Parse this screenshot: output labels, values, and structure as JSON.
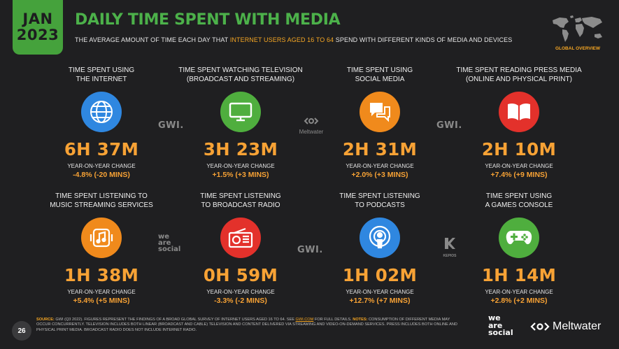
{
  "badge": {
    "month": "JAN",
    "year": "2023"
  },
  "title": "DAILY TIME SPENT WITH MEDIA",
  "subtitle": {
    "pre": "THE AVERAGE AMOUNT OF TIME EACH DAY THAT ",
    "highlight": "INTERNET USERS AGED 16 TO 64",
    "post": " SPEND WITH DIFFERENT KINDS OF MEDIA AND DEVICES"
  },
  "map_label": "GLOBAL OVERVIEW",
  "yoy_label": "YEAR-ON-YEAR CHANGE",
  "cards": [
    {
      "line1": "TIME SPENT USING",
      "line2": "THE INTERNET",
      "value": "6H 37M",
      "change": "-4.8% (-20 MINS)",
      "icon": "globe-icon",
      "color": "#2f87e0"
    },
    {
      "line1": "TIME SPENT WATCHING TELEVISION",
      "line2": "(BROADCAST AND STREAMING)",
      "value": "3H 23M",
      "change": "+1.5% (+3 MINS)",
      "icon": "television-icon",
      "color": "#4fae3e"
    },
    {
      "line1": "TIME SPENT USING",
      "line2": "SOCIAL MEDIA",
      "value": "2H 31M",
      "change": "+2.0% (+3 MINS)",
      "icon": "chat-bubbles-icon",
      "color": "#f08a1c"
    },
    {
      "line1": "TIME SPENT READING PRESS MEDIA",
      "line2": "(ONLINE AND PHYSICAL PRINT)",
      "value": "2H 10M",
      "change": "+7.4% (+9 MINS)",
      "icon": "book-icon",
      "color": "#e3312b"
    },
    {
      "line1": "TIME SPENT LISTENING TO",
      "line2": "MUSIC STREAMING SERVICES",
      "value": "1H 38M",
      "change": "+5.4% (+5 MINS)",
      "icon": "music-icon",
      "color": "#f08a1c"
    },
    {
      "line1": "TIME SPENT LISTENING",
      "line2": "TO BROADCAST RADIO",
      "value": "0H 59M",
      "change": "-3.3% (-2 MINS)",
      "icon": "radio-icon",
      "color": "#e3312b"
    },
    {
      "line1": "TIME SPENT LISTENING",
      "line2": "TO PODCASTS",
      "value": "1H 02M",
      "change": "+12.7% (+7 MINS)",
      "icon": "podcast-icon",
      "color": "#2f87e0"
    },
    {
      "line1": "TIME SPENT USING",
      "line2": "A GAMES CONSOLE",
      "value": "1H 14M",
      "change": "+2.8% (+2 MINS)",
      "icon": "gamepad-icon",
      "color": "#4fae3e"
    }
  ],
  "watermarks": {
    "gwi": "GWI.",
    "meltwater": "Meltwater",
    "we_are_social": [
      "we",
      "are",
      "social"
    ],
    "kepios": "KEPIOS"
  },
  "footer": {
    "source_key": "SOURCE:",
    "source_text": " GWI (Q3 2022). FIGURES REPRESENT THE FINDINGS OF A BROAD GLOBAL SURVEY OF INTERNET USERS AGED 16 TO 64. SEE ",
    "link": "GWI.COM",
    "source_tail": " FOR FULL DETAILS. ",
    "notes_key": "NOTES:",
    "notes_text": " CONSUMPTION OF DIFFERENT MEDIA MAY OCCUR CONCURRENTLY. TELEVISION INCLUDES BOTH LINEAR (BROADCAST AND CABLE) TELEVISION AND CONTENT DELIVERED VIA STREAMING AND VIDEO-ON-DEMAND SERVICES. PRESS INCLUDES BOTH ONLINE AND PHYSICAL PRINT MEDIA. BROADCAST RADIO DOES NOT INCLUDE INTERNET RADIO."
  },
  "page_number": "26",
  "brand": {
    "was": [
      "we",
      "are",
      "social"
    ],
    "meltwater": "Meltwater"
  }
}
